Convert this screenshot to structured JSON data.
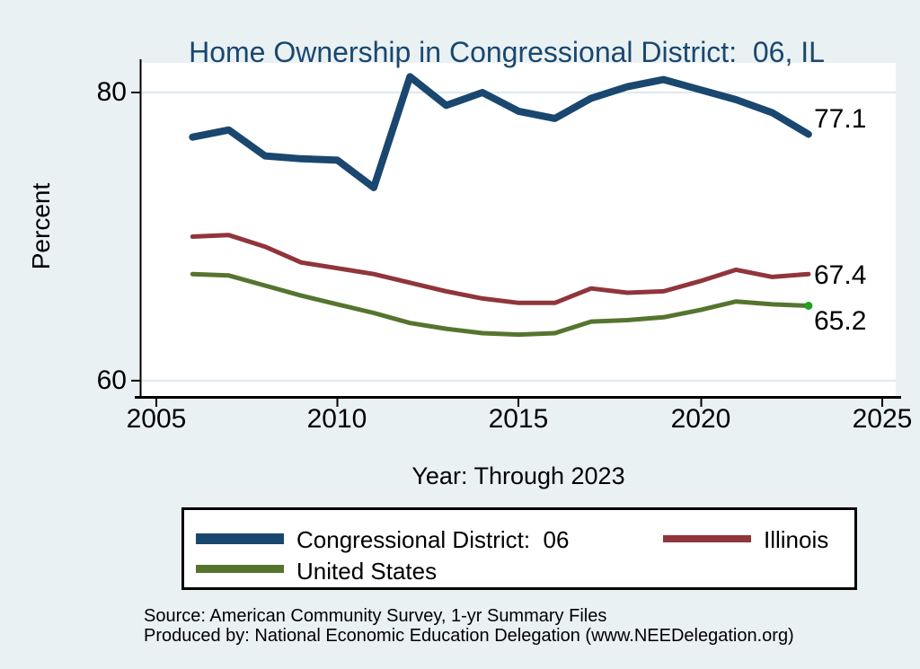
{
  "title": "Home Ownership in Congressional District:  06, IL",
  "axes": {
    "x_ticks": [
      "2005",
      "2010",
      "2015",
      "2020",
      "2025"
    ],
    "y_ticks": [
      "80",
      "60"
    ]
  },
  "chart_data": {
    "type": "line",
    "title": "Home Ownership in Congressional District:  06, IL",
    "xlabel": "Year: Through 2023",
    "ylabel": "Percent",
    "xlim": [
      2005,
      2025
    ],
    "ylim": [
      60,
      80
    ],
    "grid": "horizontal gridlines at y = 60 and y = 80, light blue on white plot area",
    "legend_position": "bottom box, black border",
    "x": [
      2006,
      2007,
      2008,
      2009,
      2010,
      2011,
      2012,
      2013,
      2014,
      2015,
      2016,
      2017,
      2018,
      2019,
      2020,
      2021,
      2022,
      2023
    ],
    "series": [
      {
        "name": "Congressional District:  06",
        "color": "#1a476f",
        "stroke_width": 8,
        "values": [
          76.9,
          77.4,
          75.6,
          75.4,
          75.3,
          73.4,
          81.1,
          79.1,
          80.0,
          78.7,
          78.2,
          79.6,
          80.4,
          80.9,
          80.2,
          79.5,
          78.6,
          77.1
        ],
        "end_label": "77.1"
      },
      {
        "name": "Illinois",
        "color": "#90353b",
        "stroke_width": 5,
        "values": [
          70.0,
          70.1,
          69.3,
          68.2,
          67.8,
          67.4,
          66.8,
          66.2,
          65.7,
          65.4,
          65.4,
          66.4,
          66.1,
          66.2,
          66.9,
          67.7,
          67.2,
          67.4
        ],
        "end_label": "67.4"
      },
      {
        "name": "United States",
        "color": "#55752f",
        "stroke_width": 5,
        "values": [
          67.4,
          67.3,
          66.6,
          65.9,
          65.3,
          64.7,
          64.0,
          63.6,
          63.3,
          63.2,
          63.3,
          64.1,
          64.2,
          64.4,
          64.9,
          65.5,
          65.3,
          65.2
        ],
        "end_label": "65.2",
        "marker_color": "#21a121"
      }
    ]
  },
  "legend": {
    "items": [
      {
        "label": "Congressional District:  06",
        "color": "#1a476f"
      },
      {
        "label": "Illinois",
        "color": "#90353b"
      },
      {
        "label": "United States",
        "color": "#55752f"
      }
    ]
  },
  "footnotes": {
    "source": "Source: American Community Survey, 1-yr Summary Files",
    "produced_by": "Produced by: National Economic Education Delegation (www.NEEDelegation.org)"
  },
  "colors": {
    "background": "#eaf1f3",
    "plot_background": "#ffffff",
    "gridline": "#dde9ef",
    "axis": "#000000",
    "title_text": "#1a476f"
  }
}
